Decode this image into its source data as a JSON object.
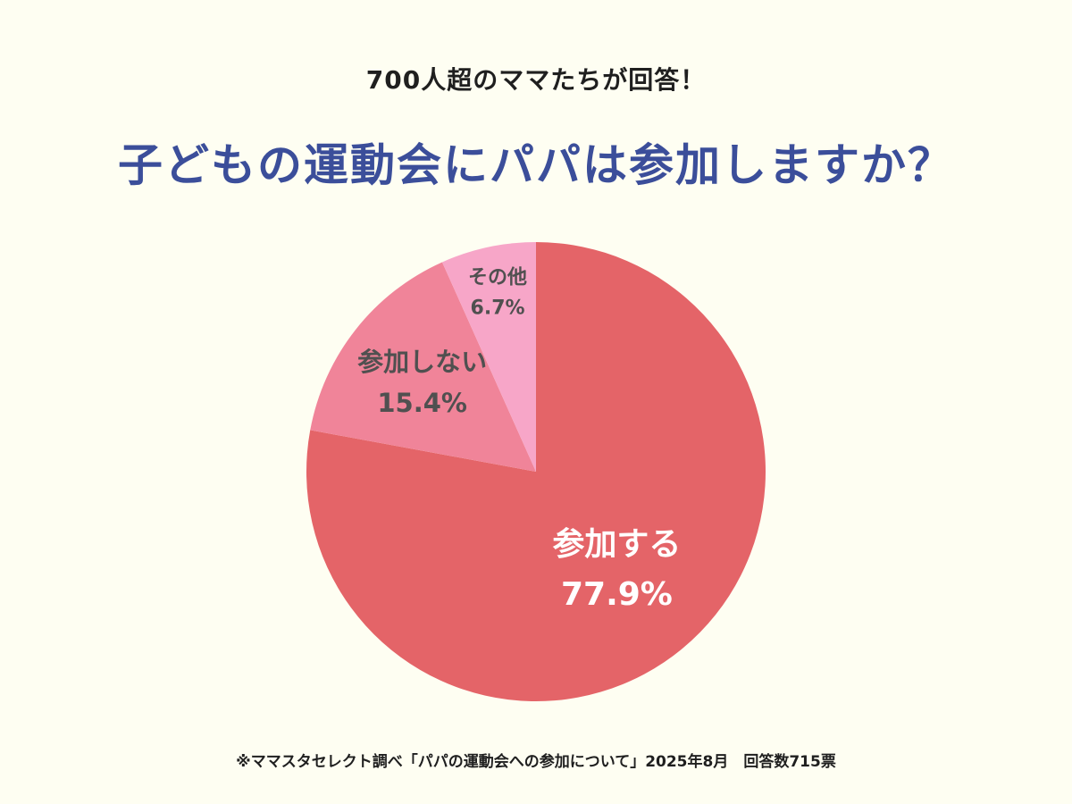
{
  "header": {
    "subtitle": "700人超のママたちが回答！",
    "title": "子どもの運動会にパパは参加しますか？"
  },
  "footnote": "※ママスタセレクト調べ「パパの運動会への参加について」2025年8月　回答数715票",
  "chart_data": {
    "type": "pie",
    "title": "子どもの運動会にパパは参加しますか？",
    "subtitle": "700人超のママたちが回答！",
    "start": "12 o'clock",
    "direction": "clockwise",
    "slices": [
      {
        "label": "参加する",
        "value": 77.9,
        "value_label": "77.9%",
        "color": "#E46468",
        "text_color": "#FFFFFF"
      },
      {
        "label": "参加しない",
        "value": 15.4,
        "value_label": "15.4%",
        "color": "#F08499",
        "text_color": "#505050"
      },
      {
        "label": "その他",
        "value": 6.7,
        "value_label": "6.7%",
        "color": "#F7A6C8",
        "text_color": "#505050"
      }
    ]
  }
}
